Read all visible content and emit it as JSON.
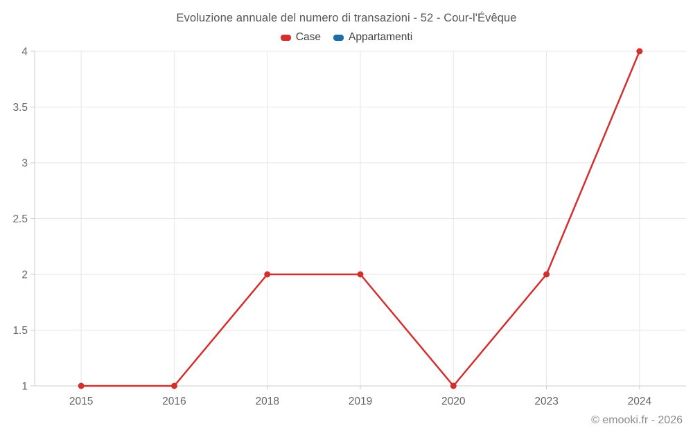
{
  "title": "Evoluzione annuale del numero di transazioni - 52 - Cour-l'Évêque",
  "legend": {
    "items": [
      {
        "label": "Case",
        "color": "#d32f2f"
      },
      {
        "label": "Appartamenti",
        "color": "#1c6ea4"
      }
    ]
  },
  "watermark": "© emooki.fr - 2026",
  "colors": {
    "series_case": "#d32f2f",
    "series_appartamenti": "#1c6ea4",
    "gridline": "#e6e6e6",
    "axis_line": "#cccccc",
    "tick_mark": "#cccccc",
    "axis_label": "#666666",
    "title_text": "#555555",
    "legend_text": "#3f3f3f",
    "watermark_text": "#8a8a8a",
    "background": "#ffffff"
  },
  "chart_data": {
    "type": "line",
    "title": "Evoluzione annuale del numero di transazioni - 52 - Cour-l'Évêque",
    "categories": [
      "2015",
      "2016",
      "2018",
      "2019",
      "2020",
      "2023",
      "2024"
    ],
    "series": [
      {
        "name": "Case",
        "color": "#d32f2f",
        "values": [
          1,
          1,
          2,
          2,
          1,
          2,
          4
        ]
      },
      {
        "name": "Appartamenti",
        "color": "#1c6ea4",
        "values": []
      }
    ],
    "xlabel": "",
    "ylabel": "",
    "ylim": [
      1,
      4
    ],
    "yticks": [
      1,
      1.5,
      2,
      2.5,
      3,
      3.5,
      4
    ],
    "grid": true,
    "legend_position": "top"
  }
}
